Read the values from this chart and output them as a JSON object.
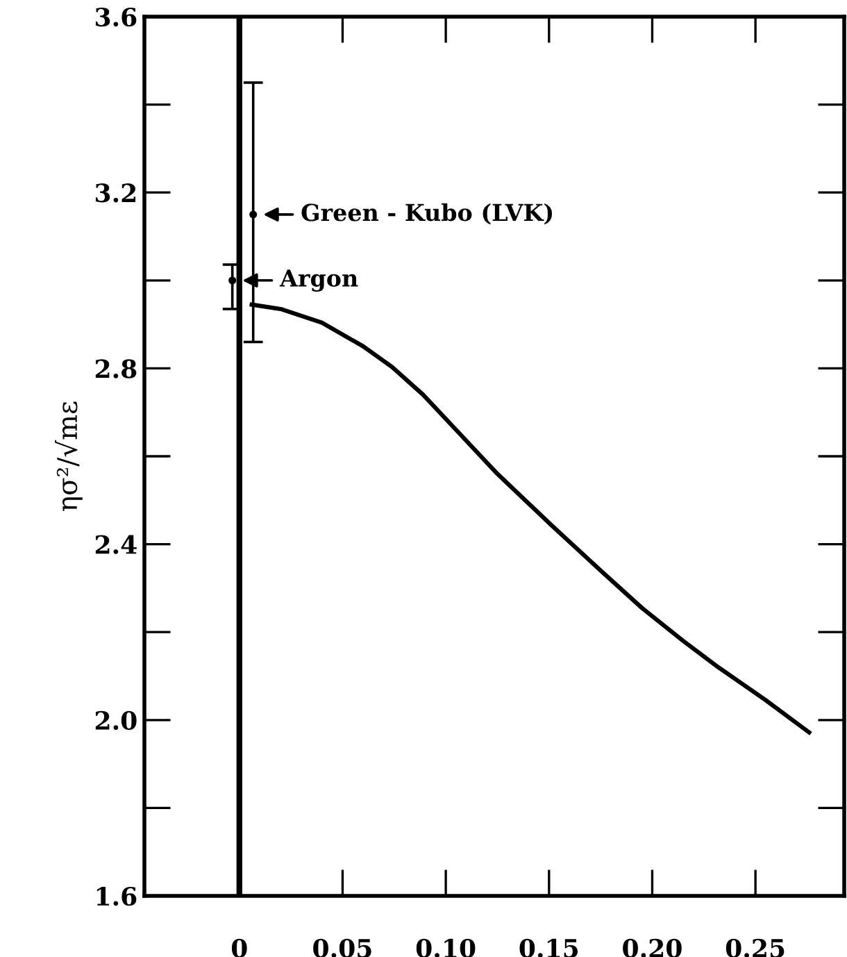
{
  "chart_data": {
    "type": "line",
    "ylabel": "ησ²/√mε",
    "xlim": [
      -0.046,
      0.293
    ],
    "ylim": [
      1.6,
      3.6
    ],
    "xticks": [
      0,
      0.05,
      {
        "value": 0.1,
        "label": "0.10"
      },
      0.15,
      {
        "value": 0.2,
        "label": "0.20"
      },
      0.25
    ],
    "yticks": [
      1.6,
      {
        "value": 2.0,
        "label": "2.0"
      },
      2.4,
      2.8,
      3.2,
      3.6
    ],
    "series": [
      {
        "color": "#000000",
        "x": [
          0.006,
          0.02,
          0.04,
          0.06,
          0.074,
          0.089,
          0.105,
          0.125,
          0.151,
          0.175,
          0.195,
          0.215,
          0.232,
          0.255,
          0.276
        ],
        "values": [
          2.945,
          2.935,
          2.904,
          2.85,
          2.803,
          2.74,
          2.66,
          2.56,
          2.444,
          2.34,
          2.255,
          2.18,
          2.12,
          2.045,
          1.972
        ]
      },
      {
        "type": "scatter",
        "color": "#000000",
        "marker": "circle",
        "x": [
          0.0067
        ],
        "values": [
          3.15
        ],
        "errors": [
          [
            2.86,
            3.45
          ]
        ]
      },
      {
        "type": "scatter",
        "color": "#000000",
        "marker": "circle",
        "x": [
          -0.0034
        ],
        "values": [
          3.0
        ],
        "errors": [
          [
            2.935,
            3.036
          ]
        ]
      }
    ],
    "ref_lines": [
      {
        "axis": "x",
        "value": 0,
        "color": "#000000"
      }
    ],
    "annotations": [
      {
        "text": "Green - Kubo (LVK)",
        "x": 0.0067,
        "y": 3.15
      },
      {
        "text": "Argon",
        "x": -0.0034,
        "y": 3.0
      }
    ],
    "grid": false,
    "legend": false
  }
}
